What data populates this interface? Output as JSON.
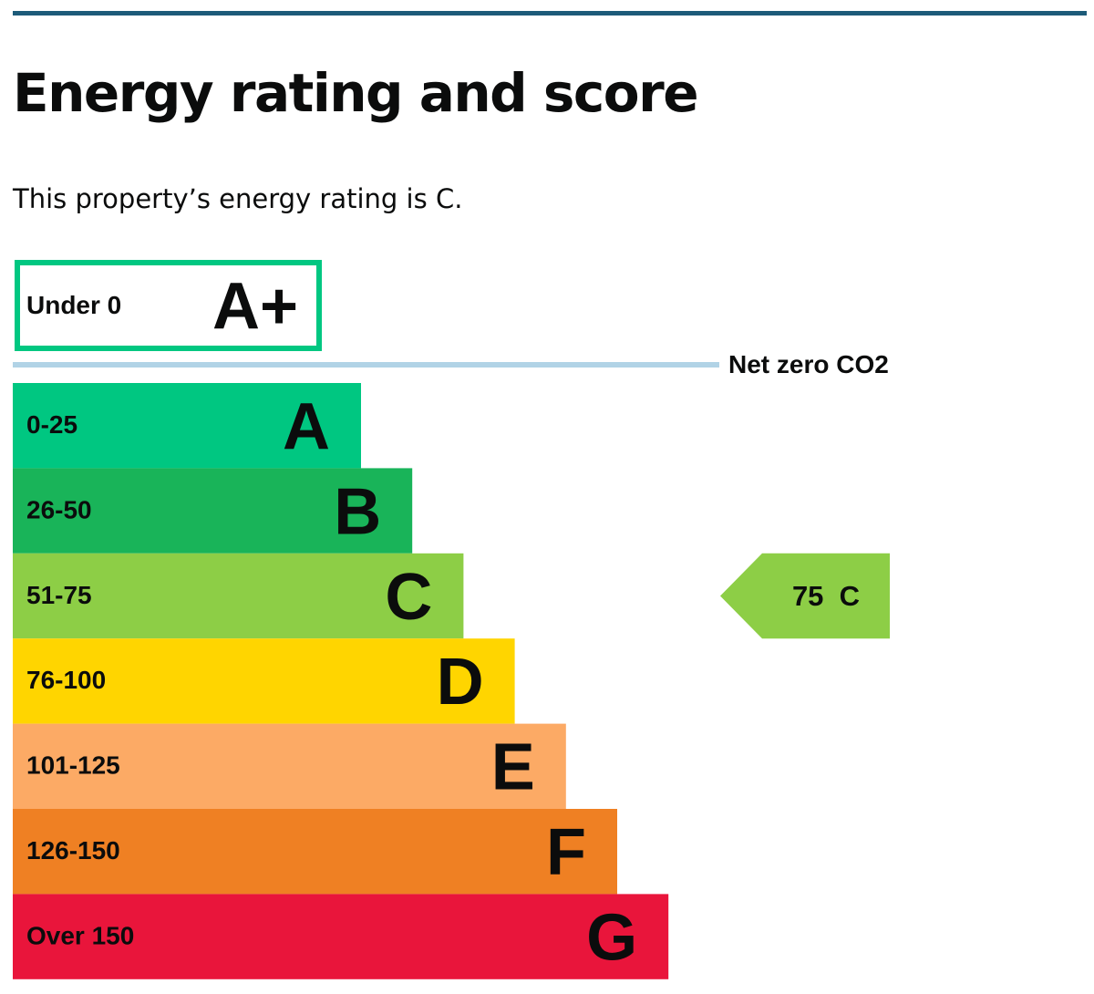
{
  "page": {
    "title": "Energy rating and score",
    "intro": "This property’s energy rating is C."
  },
  "chart_data": {
    "type": "bar",
    "subtype": "energy-performance-rating",
    "title": "Energy rating and score",
    "categories": [
      "A+",
      "A",
      "B",
      "C",
      "D",
      "E",
      "F",
      "G"
    ],
    "bands": [
      {
        "letter": "A+",
        "range": "Under 0",
        "color": "#00c781",
        "style": "outlined"
      },
      {
        "letter": "A",
        "range": "0-25",
        "color": "#00c781"
      },
      {
        "letter": "B",
        "range": "26-50",
        "color": "#19b459"
      },
      {
        "letter": "C",
        "range": "51-75",
        "color": "#8dce46"
      },
      {
        "letter": "D",
        "range": "76-100",
        "color": "#ffd500"
      },
      {
        "letter": "E",
        "range": "101-125",
        "color": "#fcaa65"
      },
      {
        "letter": "F",
        "range": "126-150",
        "color": "#ef8023"
      },
      {
        "letter": "G",
        "range": "Over 150",
        "color": "#e9153b"
      }
    ],
    "net_zero": {
      "label": "Net zero CO2",
      "color": "#b1d3e6"
    },
    "current": {
      "score": 75,
      "letter": "C",
      "label": "75  C",
      "color": "#8dce46"
    }
  }
}
